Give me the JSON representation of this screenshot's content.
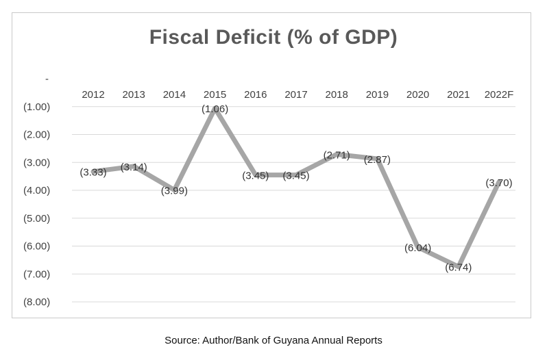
{
  "chart_data": {
    "type": "line",
    "title": "Fiscal Deficit (% of GDP)",
    "categories": [
      "2012",
      "2013",
      "2014",
      "2015",
      "2016",
      "2017",
      "2018",
      "2019",
      "2020",
      "2021",
      "2022F"
    ],
    "series": [
      {
        "name": "Fiscal Deficit (% of GDP)",
        "values": [
          -3.33,
          -3.14,
          -3.99,
          -1.06,
          -3.45,
          -3.45,
          -2.71,
          -2.87,
          -6.04,
          -6.74,
          -3.7
        ],
        "labels": [
          "(3.33)",
          "(3.14)",
          "(3.99)",
          "(1.06)",
          "(3.45)",
          "(3.45)",
          "(2.71)",
          "(2.87)",
          "(6.04)",
          "(6.74)",
          "(3.70)"
        ]
      }
    ],
    "y_ticks": [
      0,
      -1,
      -2,
      -3,
      -4,
      -5,
      -6,
      -7,
      -8
    ],
    "y_tick_labels": [
      "-",
      "(1.00)",
      "(2.00)",
      "(3.00)",
      "(4.00)",
      "(5.00)",
      "(6.00)",
      "(7.00)",
      "(8.00)"
    ],
    "ylim": [
      -8,
      0
    ],
    "xlabel": "",
    "ylabel": "",
    "grid": true,
    "legend": "none",
    "line_color": "#a6a6a6",
    "grid_color": "#d9d9d9"
  },
  "source": "Source: Author/Bank of Guyana Annual Reports"
}
